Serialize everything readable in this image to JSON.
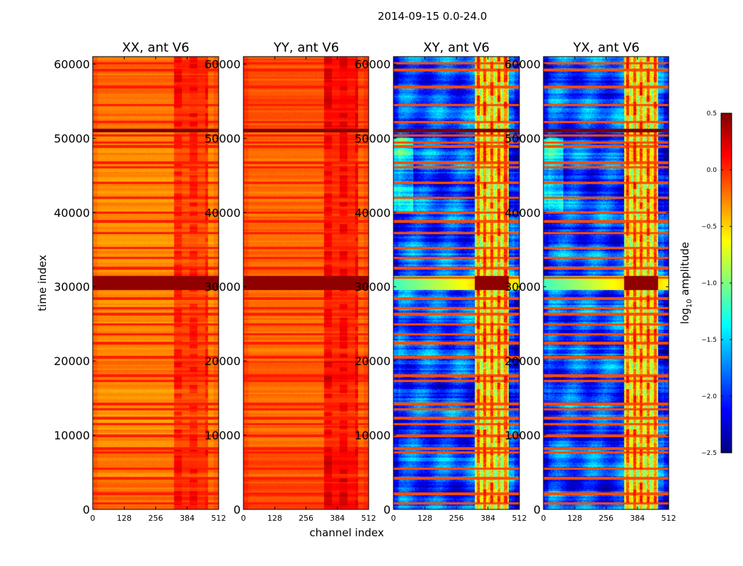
{
  "chart_data": {
    "type": "heatmap",
    "suptitle": "2014-09-15 0.0-24.0",
    "xlabel": "channel index",
    "ylabel": "time index",
    "xlim": [
      0,
      512
    ],
    "ylim": [
      0,
      61000
    ],
    "xticks": [
      0,
      128,
      256,
      384,
      512
    ],
    "xtick_labels": [
      "0",
      "128",
      "256",
      "384",
      "512"
    ],
    "yticks": [
      0,
      10000,
      20000,
      30000,
      40000,
      50000,
      60000
    ],
    "ytick_labels": [
      "0",
      "10000",
      "20000",
      "30000",
      "40000",
      "50000",
      "60000"
    ],
    "panels": [
      {
        "title": "XX, ant V6",
        "kind": "auto",
        "base_level": -0.3,
        "has_ylabel": true
      },
      {
        "title": "YY, ant V6",
        "kind": "auto",
        "base_level": -0.2,
        "has_ylabel": false
      },
      {
        "title": "XY, ant V6",
        "kind": "cross",
        "base_level": -1.9,
        "has_ylabel": false
      },
      {
        "title": "YX, ant V6",
        "kind": "cross",
        "base_level": -1.9,
        "has_ylabel": false
      }
    ],
    "colorbar": {
      "label": "log10 amplitude",
      "label_main": "log",
      "label_sub": "10",
      "label_tail": " amplitude",
      "colormap": "jet",
      "range": [
        -2.5,
        0.5
      ],
      "ticks": [
        -2.5,
        -2.0,
        -1.5,
        -1.0,
        -0.5,
        0.0,
        0.5
      ],
      "tick_labels": [
        "−2.5",
        "−2.0",
        "−1.5",
        "−1.0",
        "−0.5",
        "0.0",
        "0.5"
      ]
    },
    "features": {
      "rfi_channel_band": [
        330,
        470
      ],
      "bright_time_band": [
        29500,
        31500
      ],
      "gap_time_band": [
        50800,
        51300
      ],
      "high_blocks": [
        [
          0,
          4200
        ],
        [
          5000,
          8000
        ],
        [
          17200,
          20000
        ],
        [
          51000,
          61000
        ]
      ],
      "horizontal_lines": [
        800,
        2100,
        4200,
        5500,
        7700,
        8200,
        9900,
        11500,
        12300,
        13500,
        14200,
        17300,
        18000,
        20500,
        22400,
        23600,
        24900,
        26300,
        27100,
        28400,
        31200,
        32500,
        33900,
        35200,
        37200,
        38800,
        40000,
        42000,
        44000,
        46100,
        46700,
        48900,
        49400,
        50400,
        52200,
        54500,
        56900,
        59200,
        60100
      ]
    }
  }
}
